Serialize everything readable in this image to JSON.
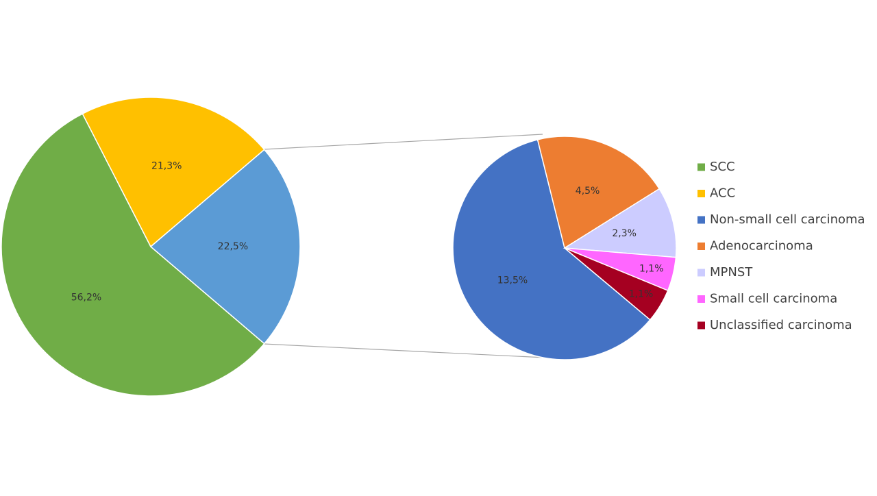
{
  "chart_data": [
    {
      "type": "pie",
      "categories": [
        "SCC",
        "ACC",
        null
      ],
      "values": [
        56.2,
        21.3,
        22.5
      ],
      "value_labels": [
        "56,2%",
        "21,3%",
        "22,5%"
      ],
      "colors": [
        "#70ad47",
        "#ffc000",
        "#5b9bd5"
      ]
    },
    {
      "type": "pie",
      "categories": [
        "Non-small cell carcinoma",
        "Adenocarcinoma",
        "MPNST",
        "Small cell carcinoma",
        "Unclassified carcinoma"
      ],
      "values": [
        13.5,
        4.5,
        2.3,
        1.1,
        1.1
      ],
      "value_labels": [
        "13,5%",
        "4,5%",
        "2,3%",
        "1,1%",
        "1,1%"
      ],
      "colors": [
        "#4472c4",
        "#ed7d31",
        "#ccccff",
        "#ff66ff",
        "#a50021"
      ]
    }
  ]
}
